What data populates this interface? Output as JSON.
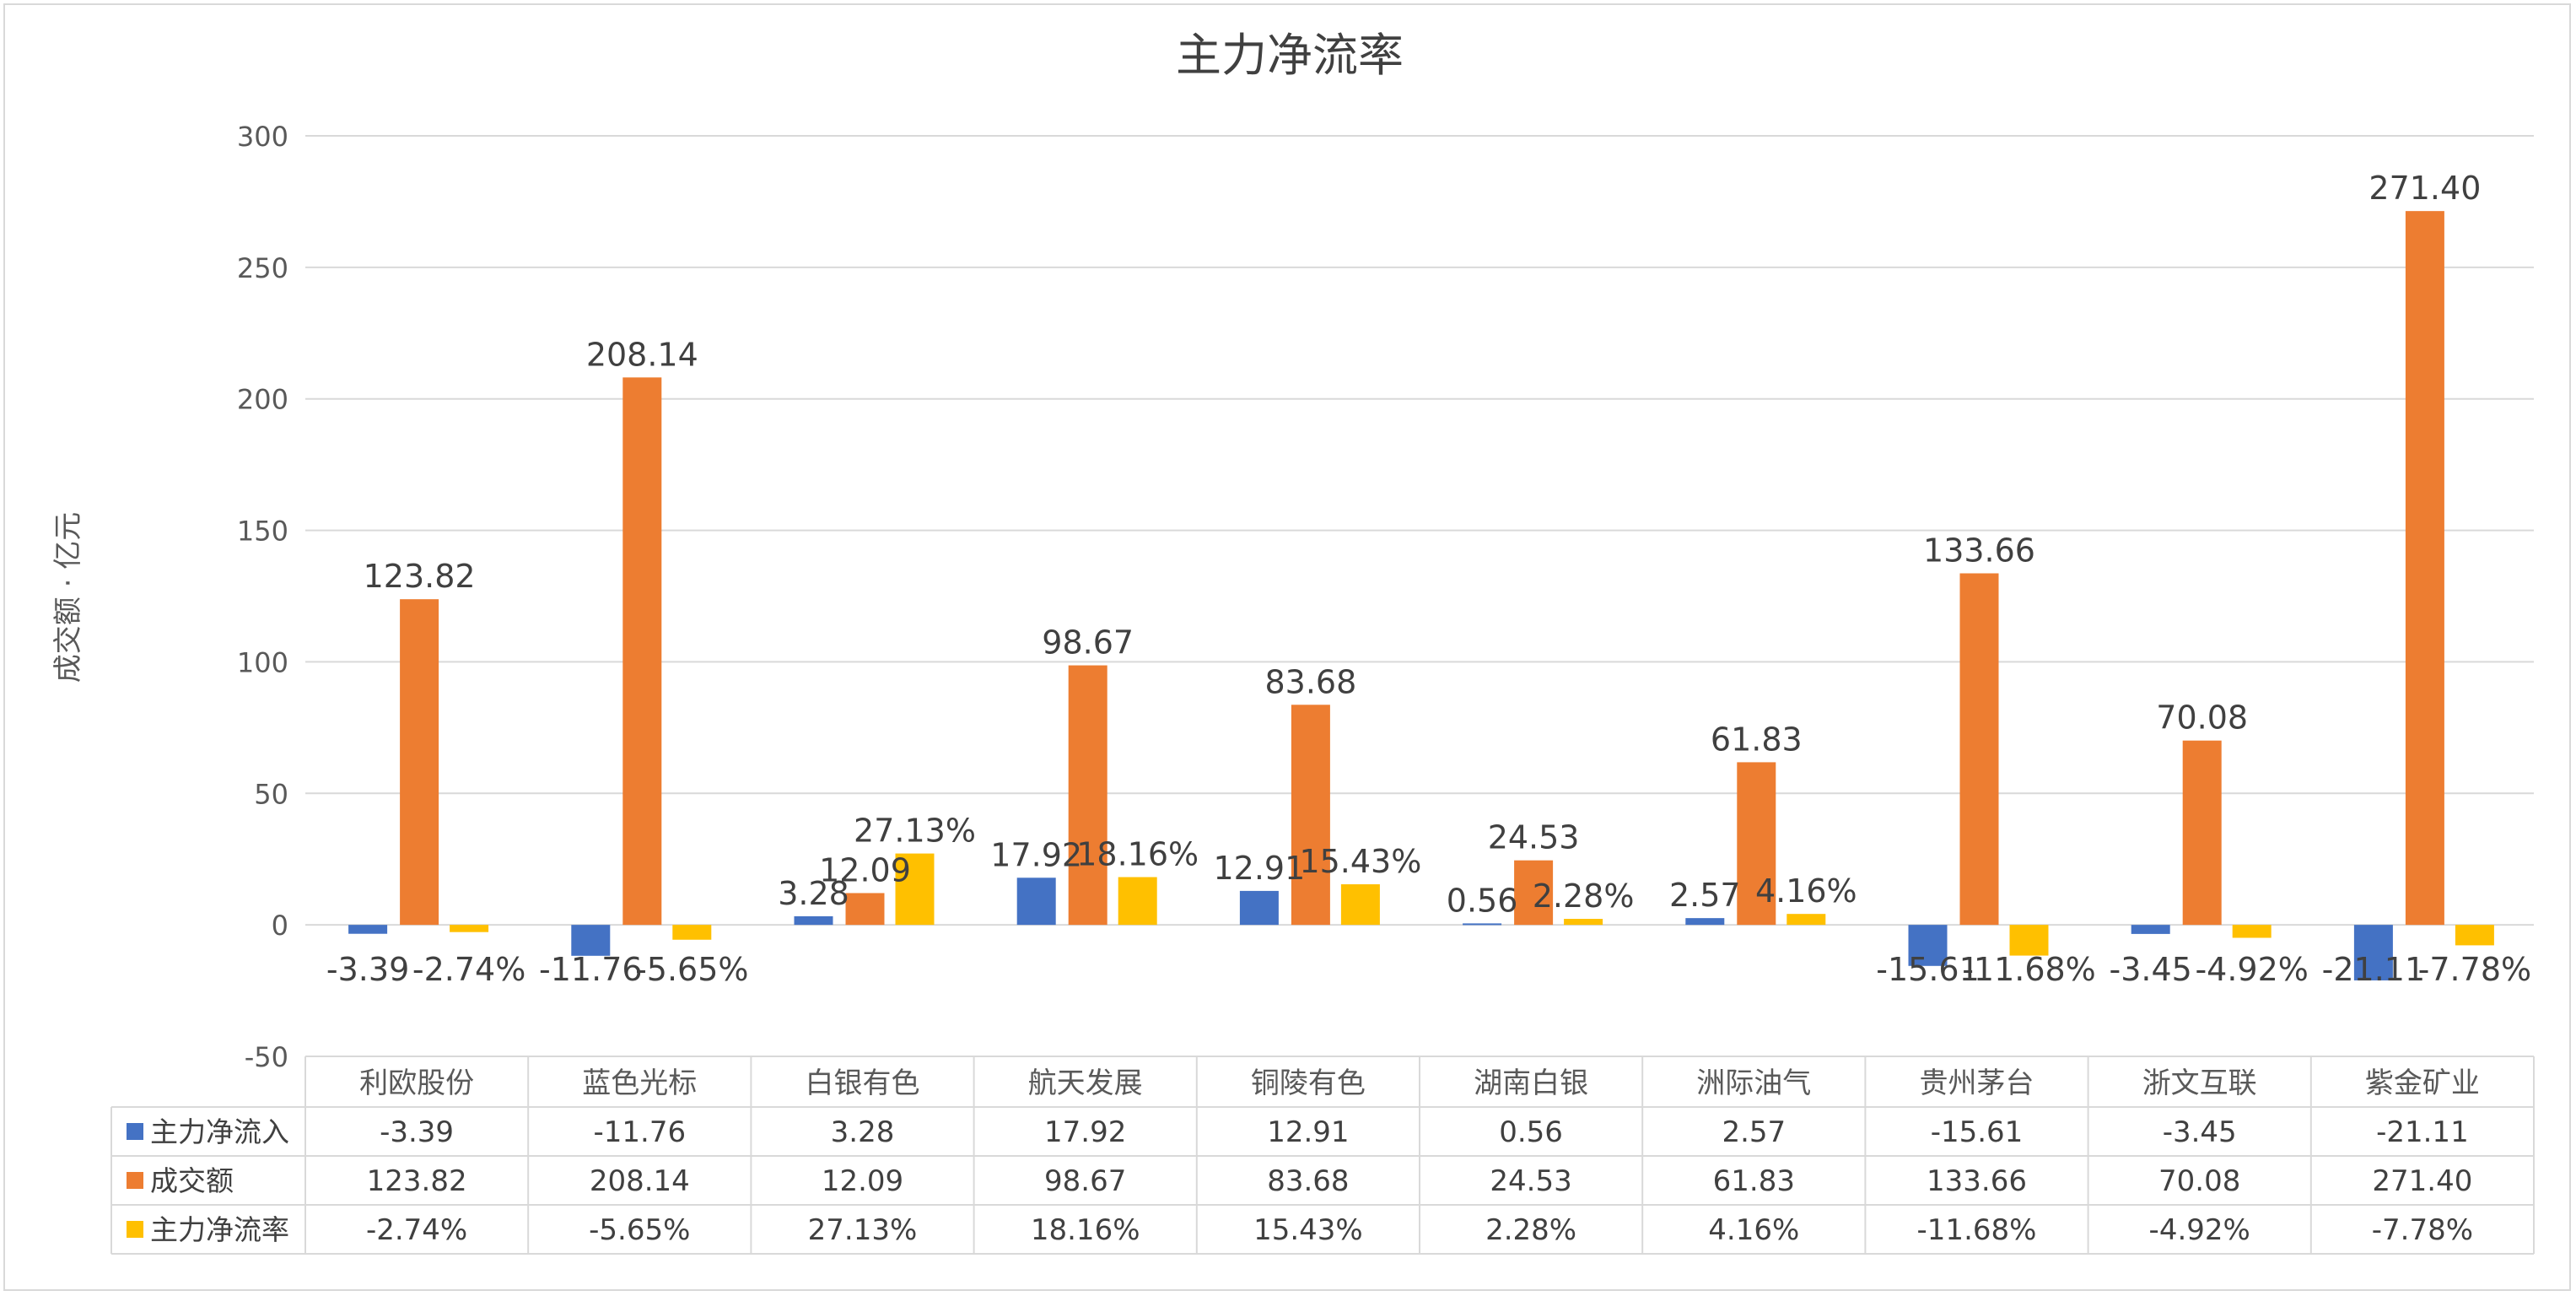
{
  "chart_data": {
    "type": "bar",
    "title": "主力净流率",
    "ylabel": "成交额 · 亿元",
    "xlabel": "",
    "ylim": [
      -50,
      300
    ],
    "yticks": [
      -50,
      0,
      50,
      100,
      150,
      200,
      250,
      300
    ],
    "grid": true,
    "legend": "data-table",
    "categories": [
      "利欧股份",
      "蓝色光标",
      "白银有色",
      "航天发展",
      "铜陵有色",
      "湖南白银",
      "洲际油气",
      "贵州茅台",
      "浙文互联",
      "紫金矿业"
    ],
    "series": [
      {
        "name": "主力净流入",
        "color": "#4472C4",
        "values": [
          -3.39,
          -11.76,
          3.28,
          17.92,
          12.91,
          0.56,
          2.57,
          -15.61,
          -3.45,
          -21.11
        ],
        "labels": [
          "-3.39",
          "-11.76",
          "3.28",
          "17.92",
          "12.91",
          "0.56",
          "2.57",
          "-15.61",
          "-3.45",
          "-21.11"
        ]
      },
      {
        "name": "成交额",
        "color": "#ED7D31",
        "values": [
          123.82,
          208.14,
          12.09,
          98.67,
          83.68,
          24.53,
          61.83,
          133.66,
          70.08,
          271.4
        ],
        "labels": [
          "123.82",
          "208.14",
          "12.09",
          "98.67",
          "83.68",
          "24.53",
          "61.83",
          "133.66",
          "70.08",
          "271.40"
        ]
      },
      {
        "name": "主力净流率",
        "color": "#FFC000",
        "values": [
          -2.74,
          -5.65,
          27.13,
          18.16,
          15.43,
          2.28,
          4.16,
          -11.68,
          -4.92,
          -7.78
        ],
        "unit": "%",
        "labels": [
          "-2.74%",
          "-5.65%",
          "27.13%",
          "18.16%",
          "15.43%",
          "2.28%",
          "4.16%",
          "-11.68%",
          "-4.92%",
          "-7.78%"
        ]
      }
    ]
  }
}
